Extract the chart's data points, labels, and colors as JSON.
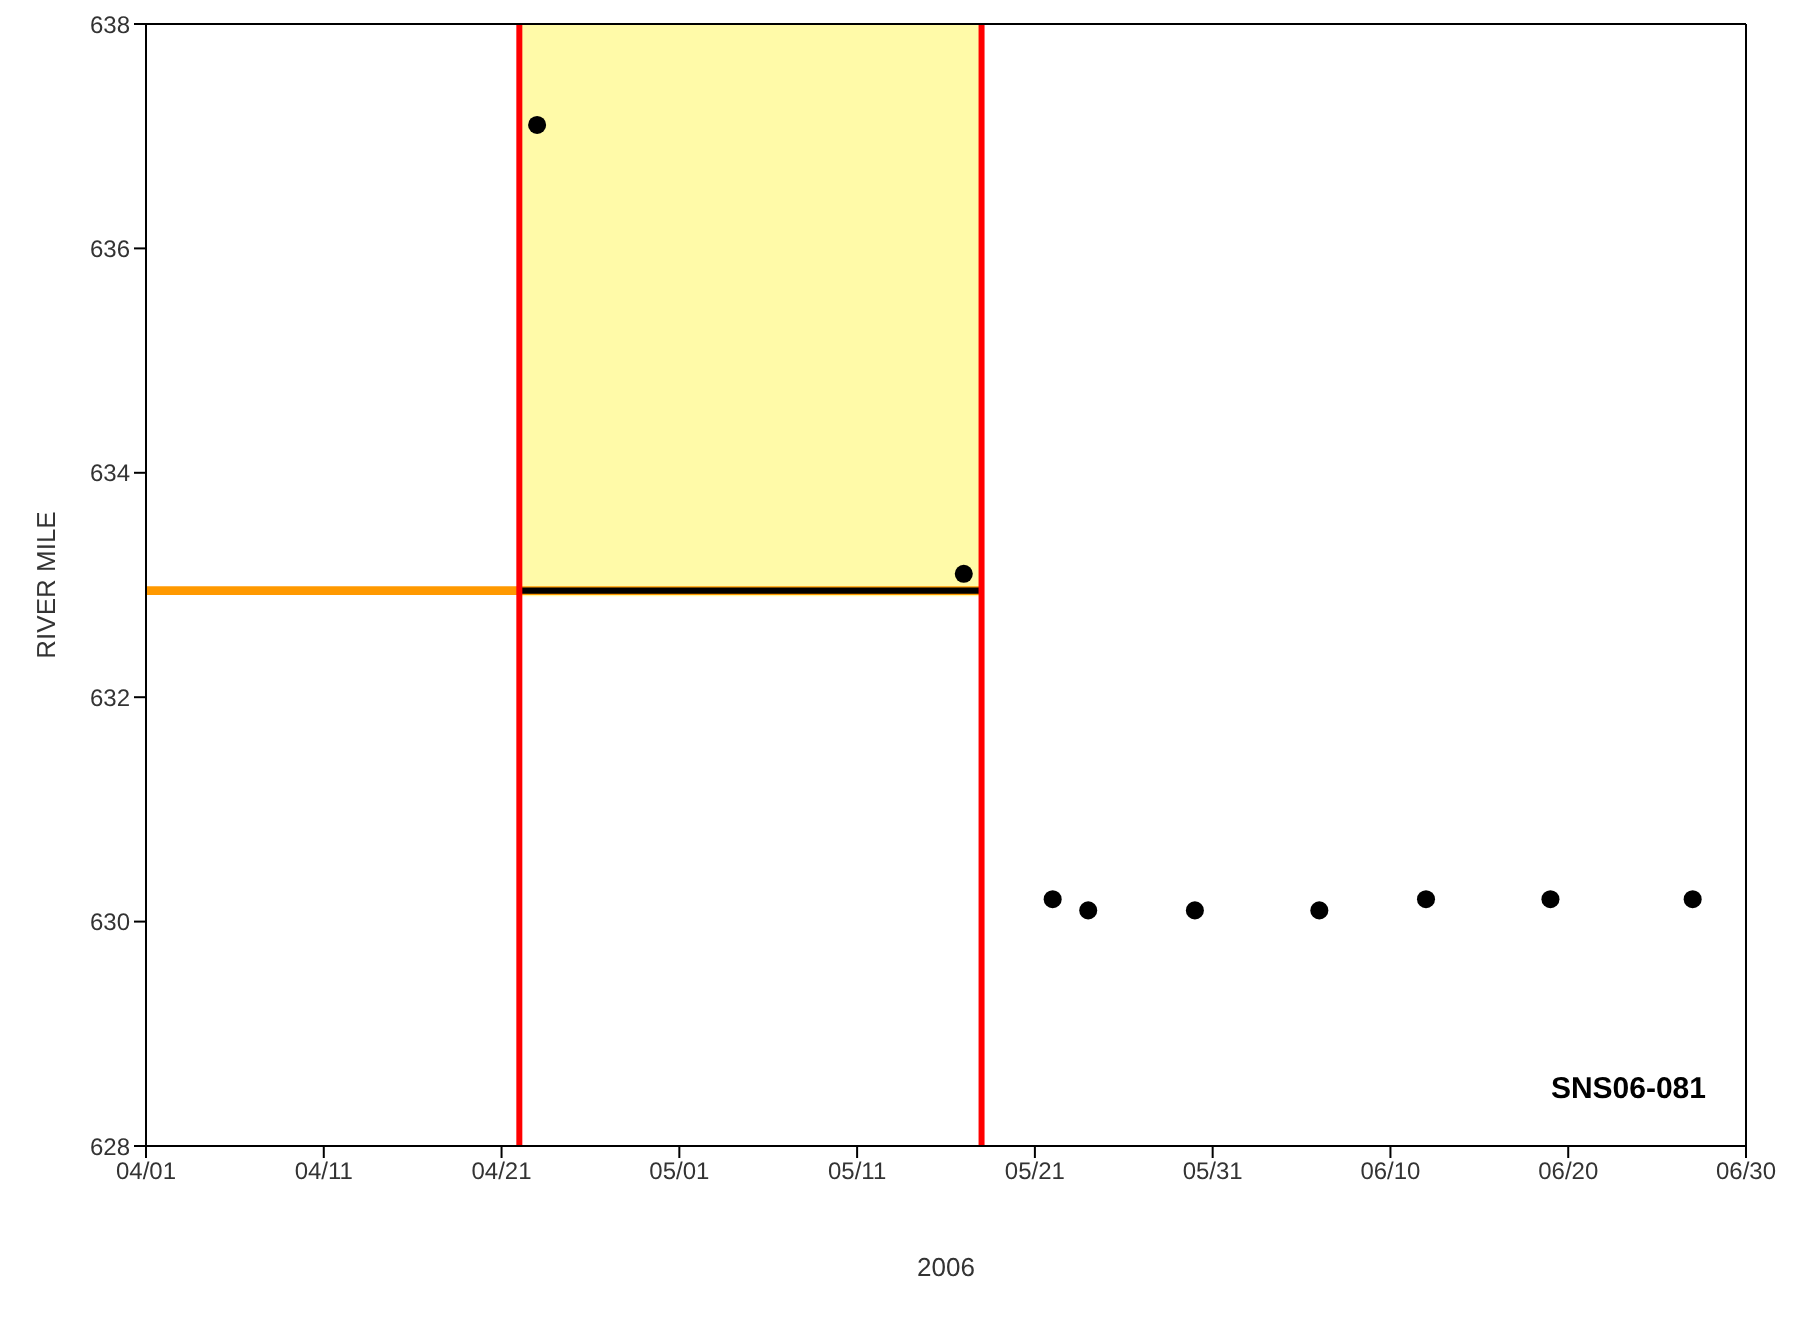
{
  "chart_data": {
    "type": "scatter",
    "xlabel": "2006",
    "ylabel": "RIVER MILE",
    "xlim": [
      "2006-04-01",
      "2006-06-30"
    ],
    "xticks": [
      {
        "value": "2006-04-01",
        "label": "04/01"
      },
      {
        "value": "2006-04-11",
        "label": "04/11"
      },
      {
        "value": "2006-04-21",
        "label": "04/21"
      },
      {
        "value": "2006-05-01",
        "label": "05/01"
      },
      {
        "value": "2006-05-11",
        "label": "05/11"
      },
      {
        "value": "2006-05-21",
        "label": "05/21"
      },
      {
        "value": "2006-05-31",
        "label": "05/31"
      },
      {
        "value": "2006-06-10",
        "label": "06/10"
      },
      {
        "value": "2006-06-20",
        "label": "06/20"
      },
      {
        "value": "2006-06-30",
        "label": "06/30"
      }
    ],
    "ylim": [
      628,
      638
    ],
    "yticks": [
      628,
      630,
      632,
      634,
      636,
      638
    ],
    "ref_lines": [
      {
        "axis": "x",
        "value": "2006-04-22",
        "color": "#ff0000"
      },
      {
        "axis": "x",
        "value": "2006-05-18",
        "color": "#ff0000"
      }
    ],
    "series": [
      {
        "type": "line",
        "color": "#fffaa8",
        "x": [
          "2006-04-22",
          "2006-05-18"
        ],
        "values": [
          632.95,
          632.95
        ],
        "lower": [
          632.95,
          632.95
        ],
        "upper": [
          638,
          638
        ]
      },
      {
        "type": "line",
        "color": "#ff9900",
        "x": [
          "2006-04-01",
          "2006-05-18"
        ],
        "values": [
          632.95,
          632.95
        ]
      },
      {
        "type": "line",
        "color": "#000000",
        "x": [
          "2006-04-22",
          "2006-05-18"
        ],
        "values": [
          632.95,
          632.95
        ]
      },
      {
        "color": "#000000",
        "marker": "circle",
        "x": [
          "2006-04-23",
          "2006-05-17",
          "2006-05-22",
          "2006-05-24",
          "2006-05-30",
          "2006-06-06",
          "2006-06-12",
          "2006-06-19",
          "2006-06-27"
        ],
        "values": [
          637.1,
          633.1,
          630.2,
          630.1,
          630.1,
          630.1,
          630.2,
          630.2,
          630.2
        ]
      }
    ],
    "annotations": [
      "SNS06-081"
    ]
  }
}
